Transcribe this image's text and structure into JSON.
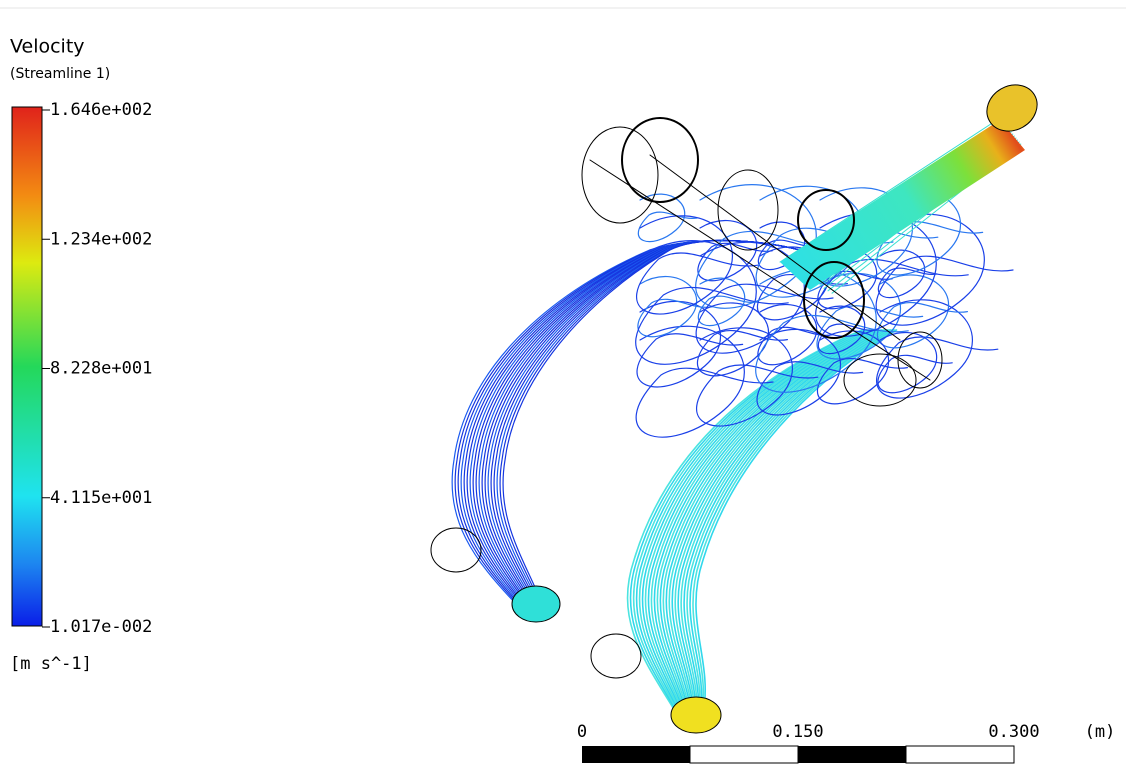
{
  "legend": {
    "title": "Velocity",
    "subtitle": "(Streamline 1)",
    "labels": [
      "1.646e+002",
      "1.234e+002",
      "8.228e+001",
      "4.115e+001",
      "1.017e-002"
    ],
    "units": "[m s^-1]"
  },
  "scale_bar": {
    "labels": [
      "0",
      "0.150",
      "0.300"
    ],
    "units": "(m)"
  }
}
